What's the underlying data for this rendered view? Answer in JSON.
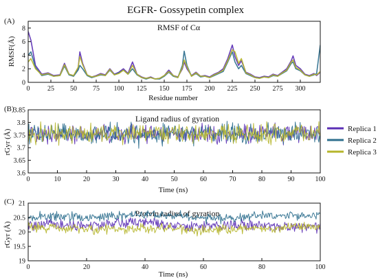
{
  "figure": {
    "title": "EGFR- Gossypetin complex"
  },
  "colors": {
    "replica1": "#5b2fb5",
    "replica2": "#2e6f8e",
    "replica3": "#b5b52a",
    "axis": "#111111"
  },
  "legend": {
    "placement": "right, beside panel B",
    "items": [
      {
        "name": "Replica 1",
        "color": "#5b2fb5"
      },
      {
        "name": "Replica 2",
        "color": "#2e6f8e"
      },
      {
        "name": "Replica 3",
        "color": "#b5b52a"
      }
    ]
  },
  "chart_data": [
    {
      "panel": "(A)",
      "type": "line",
      "title": "RMSF of Cα",
      "xlabel": "Residue number",
      "ylabel": "RMSF(Å)",
      "xlim": [
        0,
        322
      ],
      "ylim": [
        0,
        9
      ],
      "xticks": [
        0,
        25,
        50,
        75,
        100,
        125,
        150,
        175,
        200,
        225,
        250,
        275,
        300
      ],
      "yticks": [
        0,
        2,
        4,
        6,
        8
      ],
      "grid": false,
      "series": [
        {
          "name": "Replica 1",
          "x": [
            0,
            3,
            8,
            15,
            22,
            28,
            35,
            40,
            45,
            50,
            55,
            57,
            60,
            65,
            70,
            75,
            80,
            85,
            90,
            95,
            100,
            105,
            110,
            115,
            120,
            125,
            130,
            135,
            140,
            145,
            150,
            155,
            160,
            165,
            170,
            172,
            175,
            180,
            185,
            190,
            195,
            200,
            205,
            210,
            215,
            220,
            225,
            228,
            232,
            235,
            240,
            245,
            250,
            255,
            260,
            265,
            270,
            275,
            280,
            285,
            290,
            292,
            295,
            300,
            305,
            310,
            315,
            318,
            322
          ],
          "y": [
            7.5,
            6.2,
            2.5,
            1.2,
            1.4,
            1.0,
            1.1,
            2.8,
            1.2,
            1.0,
            2.0,
            4.5,
            2.8,
            1.1,
            0.8,
            1.0,
            1.3,
            1.1,
            2.0,
            1.2,
            1.5,
            2.0,
            1.3,
            3.0,
            1.2,
            0.8,
            0.6,
            0.8,
            0.5,
            0.6,
            1.0,
            1.8,
            1.0,
            0.8,
            2.0,
            3.0,
            2.0,
            1.0,
            1.5,
            0.9,
            1.0,
            0.8,
            1.2,
            1.5,
            2.0,
            3.5,
            5.5,
            3.8,
            2.5,
            3.2,
            1.5,
            1.2,
            0.8,
            0.7,
            0.9,
            0.8,
            1.2,
            1.0,
            1.5,
            2.0,
            3.2,
            3.9,
            2.5,
            2.0,
            1.2,
            1.0,
            1.3,
            1.0,
            1.5
          ]
        },
        {
          "name": "Replica 2",
          "x": [
            0,
            3,
            8,
            15,
            22,
            28,
            35,
            40,
            45,
            50,
            55,
            57,
            60,
            65,
            70,
            75,
            80,
            85,
            90,
            95,
            100,
            105,
            110,
            115,
            120,
            125,
            130,
            135,
            140,
            145,
            150,
            155,
            160,
            165,
            170,
            172,
            175,
            180,
            185,
            190,
            195,
            200,
            205,
            210,
            215,
            220,
            225,
            228,
            232,
            235,
            240,
            245,
            250,
            255,
            260,
            265,
            270,
            275,
            280,
            285,
            290,
            292,
            295,
            300,
            305,
            310,
            315,
            318,
            322
          ],
          "y": [
            4.0,
            4.5,
            2.2,
            1.0,
            1.2,
            0.9,
            1.0,
            2.4,
            1.1,
            0.9,
            1.8,
            2.5,
            2.0,
            1.0,
            0.7,
            0.9,
            1.1,
            1.0,
            1.8,
            1.1,
            1.4,
            1.8,
            1.2,
            2.0,
            1.1,
            0.7,
            0.5,
            0.7,
            0.5,
            0.5,
            0.9,
            1.5,
            0.9,
            0.7,
            2.5,
            4.6,
            2.5,
            0.9,
            1.3,
            0.8,
            0.9,
            0.7,
            1.0,
            1.3,
            1.6,
            3.0,
            4.5,
            3.0,
            2.0,
            2.5,
            1.3,
            1.0,
            0.7,
            0.6,
            0.8,
            0.7,
            1.0,
            0.9,
            1.3,
            1.7,
            2.8,
            3.0,
            2.0,
            1.7,
            1.1,
            0.9,
            1.1,
            1.3,
            5.5
          ]
        },
        {
          "name": "Replica 3",
          "x": [
            0,
            3,
            8,
            15,
            22,
            28,
            35,
            40,
            45,
            50,
            55,
            57,
            60,
            65,
            70,
            75,
            80,
            85,
            90,
            95,
            100,
            105,
            110,
            115,
            120,
            125,
            130,
            135,
            140,
            145,
            150,
            155,
            160,
            165,
            170,
            172,
            175,
            180,
            185,
            190,
            195,
            200,
            205,
            210,
            215,
            220,
            225,
            228,
            232,
            235,
            240,
            245,
            250,
            255,
            260,
            265,
            270,
            275,
            280,
            285,
            290,
            292,
            295,
            300,
            305,
            310,
            315,
            318,
            322
          ],
          "y": [
            3.0,
            3.5,
            2.0,
            1.1,
            1.3,
            0.9,
            1.0,
            2.6,
            1.2,
            1.0,
            2.2,
            3.8,
            2.6,
            1.1,
            0.8,
            0.9,
            1.2,
            1.0,
            1.9,
            1.1,
            1.3,
            1.8,
            1.2,
            2.5,
            1.2,
            0.7,
            0.6,
            0.7,
            0.5,
            0.6,
            1.0,
            1.6,
            1.0,
            0.7,
            2.2,
            3.3,
            2.3,
            0.9,
            1.4,
            0.9,
            0.9,
            0.7,
            1.1,
            1.4,
            1.8,
            3.2,
            4.8,
            4.5,
            2.8,
            3.5,
            1.4,
            1.1,
            0.7,
            0.6,
            0.8,
            0.7,
            1.1,
            0.9,
            1.4,
            1.8,
            3.0,
            3.3,
            2.2,
            1.8,
            1.1,
            0.9,
            1.2,
            1.1,
            1.6
          ]
        }
      ]
    },
    {
      "panel": "(B)",
      "type": "line",
      "title": "Ligand radius of gyration",
      "xlabel": "Time (ns)",
      "ylabel": "rGyr (Å)",
      "xlim": [
        0,
        100
      ],
      "ylim": [
        3.6,
        3.85
      ],
      "xticks": [
        0,
        10,
        20,
        30,
        40,
        50,
        60,
        70,
        80,
        90,
        100
      ],
      "yticks": [
        3.6,
        3.65,
        3.7,
        3.75,
        3.8,
        3.85
      ],
      "grid": false,
      "noise": true,
      "series": [
        {
          "name": "Replica 1",
          "x": [
            0,
            10,
            20,
            30,
            40,
            50,
            60,
            70,
            80,
            90,
            100
          ],
          "y": [
            3.755,
            3.757,
            3.756,
            3.756,
            3.755,
            3.756,
            3.756,
            3.755,
            3.756,
            3.757,
            3.756
          ],
          "spread": 0.018
        },
        {
          "name": "Replica 2",
          "x": [
            0,
            10,
            20,
            30,
            40,
            50,
            60,
            70,
            80,
            90,
            100
          ],
          "y": [
            3.758,
            3.757,
            3.755,
            3.753,
            3.755,
            3.757,
            3.756,
            3.755,
            3.757,
            3.758,
            3.757
          ],
          "spread": 0.02
        },
        {
          "name": "Replica 3",
          "x": [
            0,
            10,
            20,
            30,
            40,
            50,
            60,
            70,
            80,
            90,
            100
          ],
          "y": [
            3.755,
            3.756,
            3.754,
            3.752,
            3.753,
            3.755,
            3.755,
            3.752,
            3.756,
            3.756,
            3.757
          ],
          "spread": 0.018
        }
      ]
    },
    {
      "panel": "(C)",
      "type": "line",
      "title": "Protein radius of gyration",
      "xlabel": "Time (ns)",
      "ylabel": "rGyr (Å)",
      "xlim": [
        0,
        100
      ],
      "ylim": [
        19,
        21
      ],
      "xticks": [
        0,
        20,
        40,
        60,
        80,
        100
      ],
      "yticks": [
        19,
        19.5,
        20,
        20.5,
        21
      ],
      "grid": false,
      "noise": true,
      "series": [
        {
          "name": "Replica 1",
          "x": [
            0,
            10,
            20,
            30,
            40,
            50,
            60,
            70,
            80,
            90,
            100
          ],
          "y": [
            20.2,
            20.25,
            20.2,
            20.3,
            20.35,
            20.25,
            20.2,
            20.25,
            20.2,
            20.15,
            20.2
          ],
          "spread": 0.09
        },
        {
          "name": "Replica 2",
          "x": [
            0,
            10,
            20,
            30,
            40,
            50,
            60,
            70,
            80,
            90,
            100
          ],
          "y": [
            20.5,
            20.55,
            20.5,
            20.55,
            20.6,
            20.55,
            20.5,
            20.5,
            20.55,
            20.55,
            20.6
          ],
          "spread": 0.08
        },
        {
          "name": "Replica 3",
          "x": [
            0,
            10,
            20,
            30,
            40,
            50,
            60,
            70,
            80,
            90,
            100
          ],
          "y": [
            20.2,
            20.15,
            20.1,
            20.1,
            20.15,
            20.1,
            20.05,
            20.1,
            20.1,
            20.2,
            20.15
          ],
          "spread": 0.08
        }
      ]
    }
  ]
}
